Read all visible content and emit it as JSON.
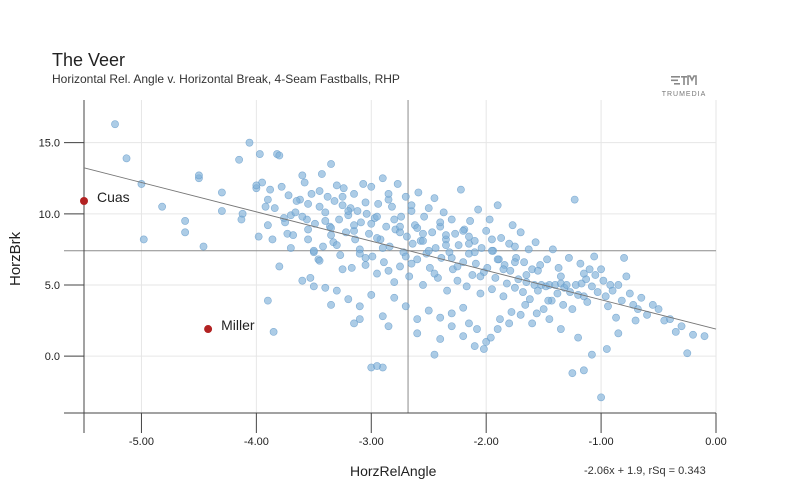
{
  "chart_data": {
    "type": "scatter",
    "title": "The Veer",
    "subtitle": "Horizontal Rel. Angle v. Horizontal Break, 4-Seam Fastballs, RHP",
    "xlabel": "HorzRelAngle",
    "ylabel": "HorzBrk",
    "xlim": [
      -5.5,
      0.0
    ],
    "ylim": [
      -4.0,
      18.0
    ],
    "x_ticks": [
      "-5.00",
      "-4.00",
      "-3.00",
      "-2.00",
      "-1.00",
      "0.00"
    ],
    "y_ticks": [
      "0.0",
      "5.0",
      "10.0",
      "15.0"
    ],
    "x_tick_values": [
      -5,
      -4,
      -3,
      -2,
      -1,
      0
    ],
    "y_tick_values": [
      0,
      5,
      10,
      15
    ],
    "grid": true,
    "reference_lines": {
      "x": -2.68,
      "y": 7.4
    },
    "trendline": {
      "slope": -2.06,
      "intercept": 1.9,
      "label": "-2.06x + 1.9, rSq = 0.343"
    },
    "point_color": "#7fb0d9",
    "highlight_color": "#b22222",
    "highlights": [
      {
        "label": "Cuas",
        "x": -5.5,
        "y": 10.9
      },
      {
        "label": "Miller",
        "x": -4.42,
        "y": 1.9
      }
    ],
    "points": [
      [
        -5.23,
        16.3
      ],
      [
        -5.13,
        13.9
      ],
      [
        -5.0,
        12.1
      ],
      [
        -4.98,
        8.2
      ],
      [
        -4.82,
        10.5
      ],
      [
        -4.62,
        9.5
      ],
      [
        -4.62,
        8.7
      ],
      [
        -4.5,
        12.5
      ],
      [
        -4.5,
        12.7
      ],
      [
        -4.46,
        7.7
      ],
      [
        -4.3,
        10.2
      ],
      [
        -4.3,
        11.5
      ],
      [
        -4.15,
        13.8
      ],
      [
        -4.12,
        10.0
      ],
      [
        -4.13,
        9.6
      ],
      [
        -4.06,
        15.0
      ],
      [
        -4.0,
        11.8
      ],
      [
        -3.98,
        8.4
      ],
      [
        -3.97,
        14.2
      ],
      [
        -3.95,
        12.2
      ],
      [
        -3.92,
        10.5
      ],
      [
        -3.9,
        9.2
      ],
      [
        -3.88,
        11.7
      ],
      [
        -3.86,
        8.2
      ],
      [
        -3.84,
        10.4
      ],
      [
        -3.82,
        14.2
      ],
      [
        -3.8,
        14.1
      ],
      [
        -3.78,
        11.9
      ],
      [
        -3.76,
        9.7
      ],
      [
        -3.73,
        8.6
      ],
      [
        -3.72,
        11.3
      ],
      [
        -3.7,
        9.9
      ],
      [
        -3.68,
        8.5
      ],
      [
        -3.66,
        10.1
      ],
      [
        -3.62,
        11.0
      ],
      [
        -3.6,
        12.7
      ],
      [
        -3.58,
        12.2
      ],
      [
        -3.56,
        9.6
      ],
      [
        -3.55,
        10.7
      ],
      [
        -3.53,
        5.5
      ],
      [
        -3.52,
        11.4
      ],
      [
        -3.5,
        7.3
      ],
      [
        -3.49,
        9.3
      ],
      [
        -3.46,
        6.8
      ],
      [
        -3.45,
        10.5
      ],
      [
        -3.43,
        12.8
      ],
      [
        -3.42,
        7.7
      ],
      [
        -3.4,
        10.1
      ],
      [
        -3.38,
        11.2
      ],
      [
        -3.36,
        9.1
      ],
      [
        -3.35,
        13.5
      ],
      [
        -3.33,
        8.0
      ],
      [
        -3.32,
        10.9
      ],
      [
        -3.3,
        12.0
      ],
      [
        -3.28,
        9.6
      ],
      [
        -3.27,
        7.1
      ],
      [
        -3.25,
        10.6
      ],
      [
        -3.24,
        11.8
      ],
      [
        -3.22,
        8.7
      ],
      [
        -3.2,
        9.9
      ],
      [
        -3.18,
        10.4
      ],
      [
        -3.17,
        6.2
      ],
      [
        -3.15,
        11.4
      ],
      [
        -3.14,
        8.2
      ],
      [
        -3.12,
        10.2
      ],
      [
        -3.1,
        7.5
      ],
      [
        -3.09,
        9.4
      ],
      [
        -3.07,
        12.1
      ],
      [
        -3.05,
        6.9
      ],
      [
        -3.04,
        10.0
      ],
      [
        -3.02,
        8.6
      ],
      [
        -3.0,
        11.9
      ],
      [
        -2.99,
        7.0
      ],
      [
        -2.97,
        9.7
      ],
      [
        -2.95,
        5.8
      ],
      [
        -2.94,
        10.7
      ],
      [
        -2.92,
        8.2
      ],
      [
        -2.9,
        12.5
      ],
      [
        -2.89,
        6.6
      ],
      [
        -2.87,
        9.1
      ],
      [
        -2.85,
        11.0
      ],
      [
        -2.84,
        7.7
      ],
      [
        -2.82,
        10.5
      ],
      [
        -2.8,
        5.2
      ],
      [
        -2.79,
        8.9
      ],
      [
        -2.77,
        12.1
      ],
      [
        -2.75,
        6.3
      ],
      [
        -2.74,
        9.8
      ],
      [
        -2.72,
        7.3
      ],
      [
        -2.7,
        11.2
      ],
      [
        -2.69,
        8.4
      ],
      [
        -2.67,
        5.6
      ],
      [
        -2.65,
        10.2
      ],
      [
        -2.64,
        7.9
      ],
      [
        -2.62,
        9.2
      ],
      [
        -2.6,
        6.8
      ],
      [
        -2.59,
        11.5
      ],
      [
        -2.57,
        8.1
      ],
      [
        -2.55,
        5.0
      ],
      [
        -2.54,
        9.8
      ],
      [
        -2.52,
        7.2
      ],
      [
        -2.5,
        10.4
      ],
      [
        -2.49,
        6.2
      ],
      [
        -2.47,
        8.7
      ],
      [
        -2.45,
        11.1
      ],
      [
        -2.44,
        7.6
      ],
      [
        -2.42,
        5.5
      ],
      [
        -2.4,
        9.1
      ],
      [
        -2.39,
        6.9
      ],
      [
        -2.37,
        10.1
      ],
      [
        -2.35,
        8.2
      ],
      [
        -2.34,
        4.6
      ],
      [
        -2.32,
        7.3
      ],
      [
        -2.3,
        9.6
      ],
      [
        -2.29,
        6.1
      ],
      [
        -2.27,
        8.6
      ],
      [
        -2.25,
        5.3
      ],
      [
        -2.24,
        7.8
      ],
      [
        -2.22,
        11.7
      ],
      [
        -2.2,
        6.6
      ],
      [
        -2.19,
        8.9
      ],
      [
        -2.17,
        4.9
      ],
      [
        -2.15,
        7.2
      ],
      [
        -2.14,
        9.5
      ],
      [
        -2.12,
        5.7
      ],
      [
        -2.1,
        8.1
      ],
      [
        -2.09,
        6.5
      ],
      [
        -2.07,
        10.3
      ],
      [
        -2.05,
        4.4
      ],
      [
        -2.04,
        7.6
      ],
      [
        -2.02,
        5.9
      ],
      [
        -2.0,
        8.8
      ],
      [
        -1.99,
        6.2
      ],
      [
        -1.97,
        9.6
      ],
      [
        -1.95,
        4.7
      ],
      [
        -1.94,
        7.4
      ],
      [
        -1.92,
        5.5
      ],
      [
        -1.9,
        10.6
      ],
      [
        -1.89,
        6.8
      ],
      [
        -1.87,
        8.3
      ],
      [
        -1.85,
        4.2
      ],
      [
        -1.84,
        6.4
      ],
      [
        -1.82,
        5.1
      ],
      [
        -1.8,
        7.9
      ],
      [
        -1.79,
        6.0
      ],
      [
        -1.77,
        9.2
      ],
      [
        -1.75,
        4.8
      ],
      [
        -1.74,
        6.9
      ],
      [
        -1.72,
        5.4
      ],
      [
        -1.7,
        8.7
      ],
      [
        -1.68,
        4.5
      ],
      [
        -1.67,
        6.6
      ],
      [
        -1.65,
        5.2
      ],
      [
        -1.63,
        7.5
      ],
      [
        -1.62,
        4.0
      ],
      [
        -1.6,
        6.1
      ],
      [
        -1.58,
        5.0
      ],
      [
        -1.57,
        8.0
      ],
      [
        -1.55,
        4.6
      ],
      [
        -1.53,
        6.4
      ],
      [
        -1.52,
        5.0
      ],
      [
        -1.5,
        3.3
      ],
      [
        -1.48,
        4.9
      ],
      [
        -1.47,
        6.8
      ],
      [
        -1.45,
        5.0
      ],
      [
        -1.43,
        3.9
      ],
      [
        -1.42,
        7.5
      ],
      [
        -1.4,
        5.0
      ],
      [
        -1.38,
        4.4
      ],
      [
        -1.37,
        6.2
      ],
      [
        -1.35,
        5.1
      ],
      [
        -1.33,
        3.6
      ],
      [
        -1.32,
        4.8
      ],
      [
        -1.3,
        5.0
      ],
      [
        -1.28,
        6.9
      ],
      [
        -1.27,
        4.5
      ],
      [
        -1.25,
        3.3
      ],
      [
        -1.23,
        11.0
      ],
      [
        -1.22,
        5.0
      ],
      [
        -1.2,
        4.3
      ],
      [
        -1.18,
        6.5
      ],
      [
        -1.17,
        5.1
      ],
      [
        -1.15,
        4.2
      ],
      [
        -1.13,
        5.4
      ],
      [
        -1.12,
        3.8
      ],
      [
        -1.1,
        6.1
      ],
      [
        -1.08,
        4.9
      ],
      [
        -1.06,
        7.0
      ],
      [
        -1.05,
        5.7
      ],
      [
        -1.03,
        4.5
      ],
      [
        -1.0,
        6.1
      ],
      [
        -0.98,
        5.3
      ],
      [
        -0.96,
        4.2
      ],
      [
        -0.94,
        3.5
      ],
      [
        -0.92,
        5.0
      ],
      [
        -0.9,
        4.6
      ],
      [
        -0.87,
        2.7
      ],
      [
        -0.85,
        5.0
      ],
      [
        -0.82,
        3.9
      ],
      [
        -0.8,
        6.9
      ],
      [
        -0.78,
        5.6
      ],
      [
        -0.75,
        4.4
      ],
      [
        -0.72,
        3.6
      ],
      [
        -0.7,
        2.5
      ],
      [
        -0.68,
        3.3
      ],
      [
        -0.65,
        4.1
      ],
      [
        -0.6,
        2.9
      ],
      [
        -0.55,
        3.6
      ],
      [
        -0.5,
        3.3
      ],
      [
        -0.45,
        2.5
      ],
      [
        -0.4,
        2.6
      ],
      [
        -0.35,
        1.7
      ],
      [
        -0.3,
        2.1
      ],
      [
        -0.25,
        0.2
      ],
      [
        -0.2,
        1.5
      ],
      [
        -0.1,
        1.4
      ],
      [
        -0.85,
        1.6
      ],
      [
        -1.0,
        -2.9
      ],
      [
        -1.15,
        -1.0
      ],
      [
        -1.25,
        -1.2
      ],
      [
        -0.95,
        0.5
      ],
      [
        -1.08,
        0.1
      ],
      [
        -1.2,
        1.3
      ],
      [
        -1.35,
        1.9
      ],
      [
        -1.45,
        2.6
      ],
      [
        -1.6,
        2.3
      ],
      [
        -1.7,
        2.9
      ],
      [
        -1.8,
        2.3
      ],
      [
        -1.9,
        1.9
      ],
      [
        -2.0,
        1.0
      ],
      [
        -2.1,
        0.7
      ],
      [
        -2.2,
        1.4
      ],
      [
        -2.3,
        2.1
      ],
      [
        -2.4,
        1.2
      ],
      [
        -2.5,
        3.2
      ],
      [
        -2.6,
        2.6
      ],
      [
        -2.7,
        3.5
      ],
      [
        -2.8,
        4.1
      ],
      [
        -2.9,
        2.8
      ],
      [
        -3.0,
        4.3
      ],
      [
        -3.1,
        3.5
      ],
      [
        -3.2,
        4.0
      ],
      [
        -3.3,
        4.6
      ],
      [
        -3.4,
        4.8
      ],
      [
        -3.5,
        4.9
      ],
      [
        -3.6,
        5.3
      ],
      [
        -3.8,
        6.3
      ],
      [
        -3.9,
        3.9
      ],
      [
        -3.85,
        1.7
      ],
      [
        -3.35,
        3.6
      ],
      [
        -2.02,
        0.5
      ],
      [
        -2.08,
        1.9
      ],
      [
        -1.96,
        1.3
      ],
      [
        -1.88,
        2.6
      ],
      [
        -1.78,
        3.1
      ],
      [
        -1.66,
        3.6
      ],
      [
        -1.56,
        3.0
      ],
      [
        -1.46,
        3.9
      ],
      [
        -2.45,
        0.1
      ],
      [
        -2.3,
        3.0
      ],
      [
        -3.0,
        -0.8
      ],
      [
        -2.9,
        -0.8
      ],
      [
        -2.95,
        -0.7
      ],
      [
        -3.15,
        2.3
      ],
      [
        -3.1,
        2.6
      ],
      [
        -2.85,
        2.1
      ],
      [
        -2.6,
        1.6
      ],
      [
        -2.4,
        2.7
      ],
      [
        -2.2,
        3.4
      ],
      [
        -2.15,
        2.3
      ],
      [
        -3.45,
        6.7
      ],
      [
        -3.25,
        6.1
      ],
      [
        -3.05,
        6.4
      ],
      [
        -2.85,
        6.0
      ],
      [
        -2.65,
        6.5
      ],
      [
        -2.45,
        5.8
      ],
      [
        -2.25,
        6.3
      ],
      [
        -2.05,
        5.6
      ],
      [
        -1.85,
        6.1
      ],
      [
        -1.65,
        5.7
      ],
      [
        -3.55,
        8.9
      ],
      [
        -3.35,
        8.5
      ],
      [
        -3.15,
        8.8
      ],
      [
        -2.95,
        8.3
      ],
      [
        -2.75,
        8.7
      ],
      [
        -2.55,
        8.1
      ],
      [
        -2.35,
        8.5
      ],
      [
        -2.15,
        7.9
      ],
      [
        -1.95,
        8.2
      ],
      [
        -1.75,
        7.7
      ],
      [
        -3.6,
        9.8
      ],
      [
        -3.4,
        9.5
      ],
      [
        -3.2,
        10.2
      ],
      [
        -3.0,
        9.3
      ],
      [
        -2.8,
        9.6
      ],
      [
        -2.6,
        9.0
      ],
      [
        -2.4,
        9.4
      ],
      [
        -2.2,
        8.8
      ],
      [
        -3.7,
        7.6
      ],
      [
        -3.5,
        7.4
      ],
      [
        -3.3,
        7.8
      ],
      [
        -3.1,
        7.2
      ],
      [
        -2.9,
        7.6
      ],
      [
        -2.7,
        7.0
      ],
      [
        -2.5,
        7.4
      ],
      [
        -2.3,
        6.9
      ],
      [
        -2.1,
        7.3
      ],
      [
        -1.9,
        6.8
      ],
      [
        -3.65,
        10.9
      ],
      [
        -3.45,
        11.6
      ],
      [
        -3.25,
        11.2
      ],
      [
        -3.05,
        10.8
      ],
      [
        -2.85,
        11.4
      ],
      [
        -2.65,
        10.6
      ],
      [
        -3.75,
        9.4
      ],
      [
        -3.55,
        8.2
      ],
      [
        -3.35,
        9.0
      ],
      [
        -3.15,
        9.2
      ],
      [
        -2.95,
        9.8
      ],
      [
        -2.75,
        9.1
      ],
      [
        -2.55,
        8.6
      ],
      [
        -2.35,
        7.8
      ],
      [
        -2.15,
        8.4
      ],
      [
        -1.95,
        7.4
      ],
      [
        -1.75,
        6.6
      ],
      [
        -1.55,
        6.0
      ],
      [
        -1.35,
        5.6
      ],
      [
        -1.15,
        5.8
      ],
      [
        -4.0,
        12.0
      ],
      [
        -3.9,
        11.0
      ]
    ]
  }
}
